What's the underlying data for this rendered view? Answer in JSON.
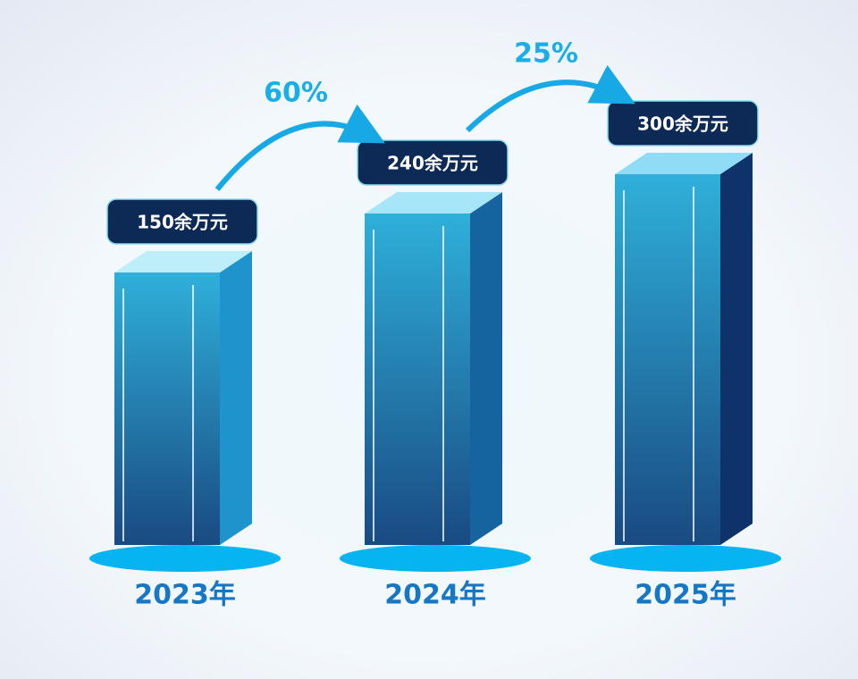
{
  "chart_data": {
    "type": "bar3d",
    "categories": [
      "2023年",
      "2024年",
      "2025年"
    ],
    "values": [
      150,
      240,
      300
    ],
    "value_labels": [
      "150余万元",
      "240余万元",
      "300余万元"
    ],
    "growth": [
      {
        "value": 60,
        "label": "60%"
      },
      {
        "value": 25,
        "label": "25%"
      }
    ]
  }
}
